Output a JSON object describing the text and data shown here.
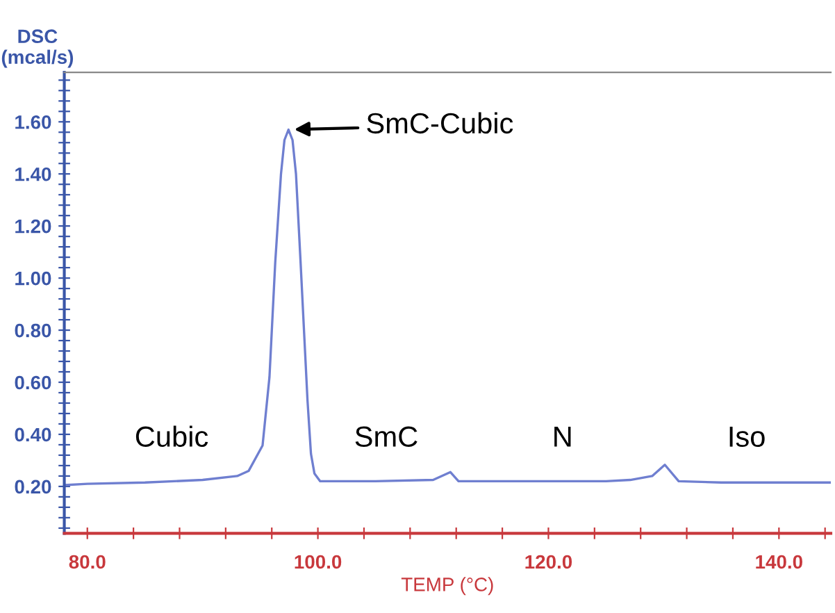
{
  "chart_data": {
    "type": "line",
    "xlabel": "TEMP (°C)",
    "ylabel": "DSC\n(mcal/s)",
    "xlim": [
      78,
      144.5
    ],
    "ylim": [
      0.02,
      1.79
    ],
    "xticks": [
      {
        "value": 80,
        "label": "80.0"
      },
      {
        "value": 84,
        "label": null
      },
      {
        "value": 88,
        "label": null
      },
      {
        "value": 92,
        "label": null
      },
      {
        "value": 96,
        "label": null
      },
      {
        "value": 100,
        "label": "100.0"
      },
      {
        "value": 104,
        "label": null
      },
      {
        "value": 108,
        "label": null
      },
      {
        "value": 112,
        "label": null
      },
      {
        "value": 116,
        "label": null
      },
      {
        "value": 120,
        "label": "120.0"
      },
      {
        "value": 124,
        "label": null
      },
      {
        "value": 128,
        "label": null
      },
      {
        "value": 132,
        "label": null
      },
      {
        "value": 136,
        "label": null
      },
      {
        "value": 140,
        "label": "140.0"
      },
      {
        "value": 144,
        "label": null
      }
    ],
    "yticks": [
      {
        "value": 0.04,
        "label": null
      },
      {
        "value": 0.08,
        "label": null
      },
      {
        "value": 0.12,
        "label": null
      },
      {
        "value": 0.16,
        "label": null
      },
      {
        "value": 0.2,
        "label": "0.20"
      },
      {
        "value": 0.24,
        "label": null
      },
      {
        "value": 0.28,
        "label": null
      },
      {
        "value": 0.32,
        "label": null
      },
      {
        "value": 0.36,
        "label": null
      },
      {
        "value": 0.4,
        "label": "0.40"
      },
      {
        "value": 0.44,
        "label": null
      },
      {
        "value": 0.48,
        "label": null
      },
      {
        "value": 0.52,
        "label": null
      },
      {
        "value": 0.56,
        "label": null
      },
      {
        "value": 0.6,
        "label": "0.60"
      },
      {
        "value": 0.64,
        "label": null
      },
      {
        "value": 0.68,
        "label": null
      },
      {
        "value": 0.72,
        "label": null
      },
      {
        "value": 0.76,
        "label": null
      },
      {
        "value": 0.8,
        "label": "0.80"
      },
      {
        "value": 0.84,
        "label": null
      },
      {
        "value": 0.88,
        "label": null
      },
      {
        "value": 0.92,
        "label": null
      },
      {
        "value": 0.96,
        "label": null
      },
      {
        "value": 1.0,
        "label": "1.00"
      },
      {
        "value": 1.04,
        "label": null
      },
      {
        "value": 1.08,
        "label": null
      },
      {
        "value": 1.12,
        "label": null
      },
      {
        "value": 1.16,
        "label": null
      },
      {
        "value": 1.2,
        "label": "1.20"
      },
      {
        "value": 1.24,
        "label": null
      },
      {
        "value": 1.28,
        "label": null
      },
      {
        "value": 1.32,
        "label": null
      },
      {
        "value": 1.36,
        "label": null
      },
      {
        "value": 1.4,
        "label": "1.40"
      },
      {
        "value": 1.44,
        "label": null
      },
      {
        "value": 1.48,
        "label": null
      },
      {
        "value": 1.52,
        "label": null
      },
      {
        "value": 1.56,
        "label": null
      },
      {
        "value": 1.6,
        "label": "1.60"
      },
      {
        "value": 1.64,
        "label": null
      },
      {
        "value": 1.68,
        "label": null
      },
      {
        "value": 1.72,
        "label": null
      },
      {
        "value": 1.76,
        "label": null
      }
    ],
    "grid": false,
    "marker": "none",
    "line_style": "solid",
    "series": [
      {
        "color": "#6f7fd0",
        "x": [
          78,
          80,
          85,
          90,
          93,
          94.0,
          95.2,
          95.8,
          96.3,
          96.8,
          97.1,
          97.45,
          97.8,
          98.1,
          98.5,
          99.1,
          99.4,
          99.7,
          100.2,
          105,
          110,
          111.5,
          112.2,
          115,
          120,
          125,
          127.1,
          129,
          130.1,
          131.3,
          135,
          140,
          144.5
        ],
        "values": [
          0.205,
          0.21,
          0.215,
          0.225,
          0.24,
          0.26,
          0.357,
          0.62,
          1.06,
          1.4,
          1.53,
          1.57,
          1.53,
          1.4,
          1.06,
          0.53,
          0.325,
          0.25,
          0.22,
          0.22,
          0.225,
          0.255,
          0.22,
          0.22,
          0.22,
          0.22,
          0.225,
          0.24,
          0.283,
          0.22,
          0.215,
          0.215,
          0.215
        ]
      }
    ],
    "annotations": [
      {
        "text": "SmC-Cubic",
        "x": 97.45,
        "y": 1.57
      },
      "Cubic",
      "SmC",
      "N",
      "Iso"
    ]
  }
}
